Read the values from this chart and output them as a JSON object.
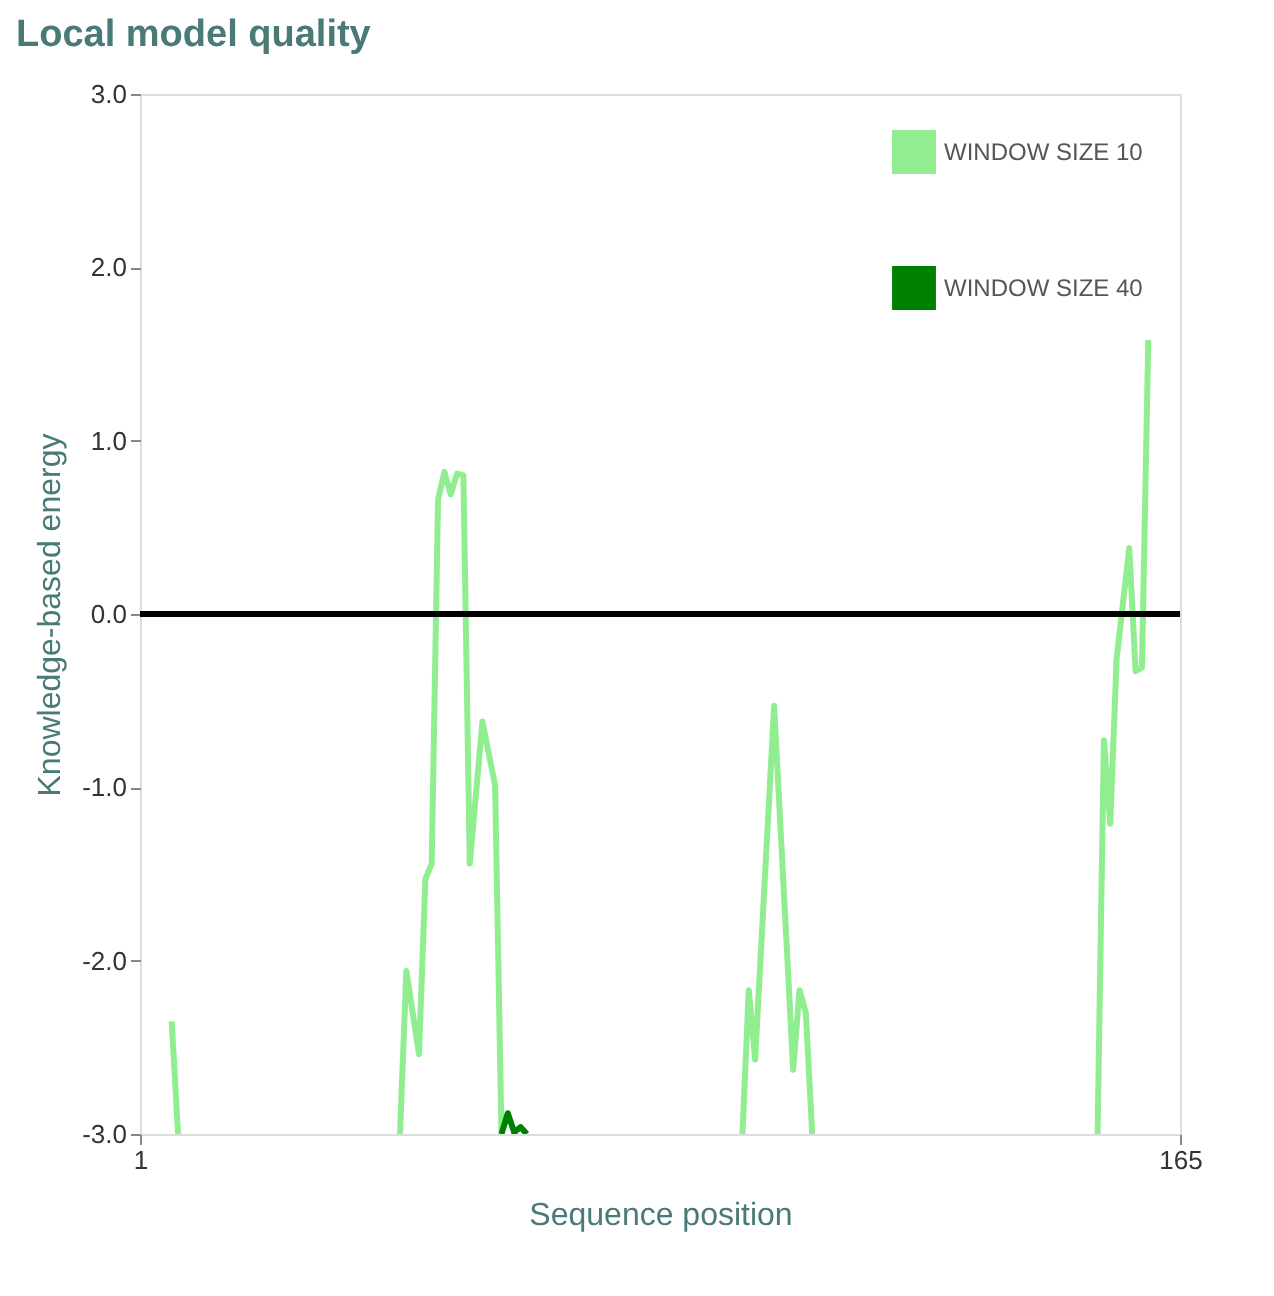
{
  "chart_data": {
    "type": "line",
    "title": "Local model quality",
    "xlabel": "Sequence position",
    "ylabel": "Knowledge-based energy",
    "xlim": [
      1,
      165
    ],
    "xticks": [
      1,
      165
    ],
    "ylim": [
      -3,
      3
    ],
    "yticks": [
      {
        "value": -3,
        "label": "-3.0"
      },
      {
        "value": -2,
        "label": "-2.0"
      },
      {
        "value": -1,
        "label": "-1.0"
      },
      {
        "value": 0,
        "label": "0.0"
      },
      {
        "value": 1,
        "label": "1.0"
      },
      {
        "value": 2,
        "label": "2.0"
      },
      {
        "value": 3,
        "label": "3.0"
      }
    ],
    "grid": false,
    "legend": "top right",
    "marker": "none",
    "line_style": "solid",
    "ref_lines": [
      {
        "axis": "y",
        "value": 0,
        "color": "#000000"
      }
    ],
    "series": [
      {
        "name": "WINDOW SIZE 10",
        "color": "#90ee90",
        "x": [
          6,
          7,
          8,
          42,
          43,
          45,
          46,
          47,
          48,
          49,
          50,
          51,
          52,
          53,
          55,
          57,
          58,
          59,
          96,
          97,
          98,
          101,
          104,
          105,
          106,
          107,
          108,
          152,
          153,
          154,
          155,
          157,
          158,
          159,
          160
        ],
        "values": [
          -2.35,
          -3,
          null,
          -3,
          -2.06,
          -2.54,
          -1.53,
          -1.44,
          0.66,
          0.82,
          0.69,
          0.81,
          0.8,
          -1.44,
          -0.62,
          -0.99,
          -3,
          null,
          -3,
          -2.17,
          -2.57,
          -0.53,
          -2.63,
          -2.17,
          -2.3,
          -3,
          null,
          -3,
          -0.73,
          -1.21,
          -0.26,
          0.38,
          -0.33,
          -0.31,
          1.58
        ]
      },
      {
        "name": "WINDOW SIZE 40",
        "color": "#008000",
        "x": [
          58,
          59,
          60,
          61,
          62
        ],
        "values": [
          -3,
          -2.88,
          -2.99,
          -2.96,
          -3
        ]
      }
    ]
  }
}
